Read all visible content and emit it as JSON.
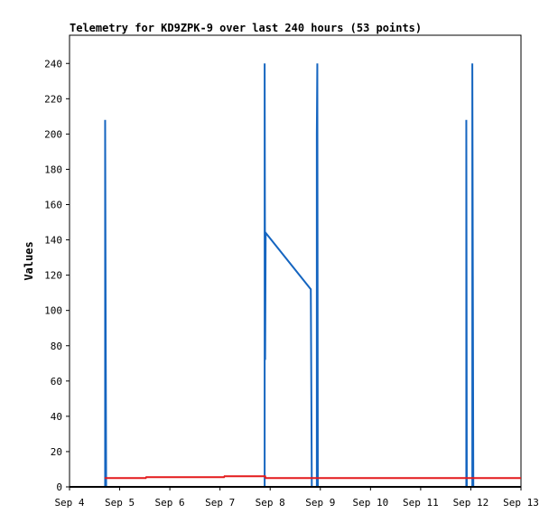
{
  "chart_data": {
    "type": "line",
    "title": "Telemetry for KD9ZPK-9 over last 240 hours (53 points)",
    "xlabel": "",
    "ylabel": "Values",
    "x_ticks": [
      "Sep 4",
      "Sep 5",
      "Sep 6",
      "Sep 7",
      "Sep 8",
      "Sep 9",
      "Sep 10",
      "Sep 11",
      "Sep 12",
      "Sep 13"
    ],
    "xlim": [
      0,
      9
    ],
    "ylim": [
      0,
      256
    ],
    "y_ticks": [
      0,
      20,
      40,
      60,
      80,
      100,
      120,
      140,
      160,
      180,
      200,
      220,
      240
    ],
    "grid": false,
    "x_units": "days since Sep 4",
    "series": [
      {
        "color": "#1565c0",
        "points": [
          [
            0.71,
            0
          ],
          [
            0.71,
            208
          ],
          [
            0.72,
            96
          ],
          [
            0.73,
            0
          ],
          [
            3.89,
            0
          ],
          [
            3.89,
            240
          ],
          [
            3.9,
            72
          ],
          [
            3.91,
            144
          ],
          [
            4.81,
            112
          ],
          [
            4.82,
            56
          ],
          [
            4.83,
            0
          ],
          [
            4.93,
            0
          ],
          [
            4.93,
            200
          ],
          [
            4.94,
            240
          ],
          [
            4.95,
            0
          ],
          [
            7.91,
            0
          ],
          [
            7.91,
            208
          ],
          [
            7.92,
            0
          ],
          [
            8.03,
            0
          ],
          [
            8.03,
            240
          ],
          [
            8.04,
            120
          ],
          [
            8.05,
            0
          ]
        ]
      },
      {
        "color": "#e41a1c",
        "points": [
          [
            0.7,
            5.0
          ],
          [
            1.52,
            5.0
          ],
          [
            1.53,
            5.5
          ],
          [
            3.08,
            5.5
          ],
          [
            3.09,
            6.0
          ],
          [
            3.9,
            6.0
          ],
          [
            3.91,
            5.0
          ],
          [
            9.0,
            5.0
          ]
        ]
      },
      {
        "color": "#000000",
        "points": [
          [
            0,
            0
          ],
          [
            9,
            0
          ]
        ]
      }
    ]
  }
}
